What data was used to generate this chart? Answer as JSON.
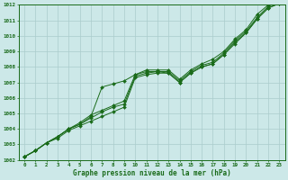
{
  "xlabel": "Graphe pression niveau de la mer (hPa)",
  "bg_color": "#cce8e8",
  "grid_color": "#aacccc",
  "line_color": "#1a6b1a",
  "xlim": [
    -0.5,
    23.5
  ],
  "ylim": [
    1002,
    1012
  ],
  "xticks": [
    0,
    1,
    2,
    3,
    4,
    5,
    6,
    7,
    8,
    9,
    10,
    11,
    12,
    13,
    14,
    15,
    16,
    17,
    18,
    19,
    20,
    21,
    22,
    23
  ],
  "yticks": [
    1002,
    1003,
    1004,
    1005,
    1006,
    1007,
    1008,
    1009,
    1010,
    1011,
    1012
  ],
  "series": [
    [
      1002.2,
      1002.6,
      1003.1,
      1003.4,
      1003.9,
      1004.2,
      1004.5,
      1004.8,
      1005.1,
      1005.4,
      1007.3,
      1007.5,
      1007.6,
      1007.6,
      1007.0,
      1007.6,
      1008.0,
      1008.2,
      1008.8,
      1009.6,
      1010.2,
      1011.1,
      1011.8,
      1012.1
    ],
    [
      1002.2,
      1002.6,
      1003.1,
      1003.5,
      1004.0,
      1004.3,
      1004.7,
      1005.1,
      1005.4,
      1005.6,
      1007.4,
      1007.6,
      1007.7,
      1007.7,
      1007.1,
      1007.7,
      1008.1,
      1008.3,
      1008.9,
      1009.7,
      1010.3,
      1011.2,
      1011.9,
      1012.2
    ],
    [
      1002.2,
      1002.6,
      1003.1,
      1003.5,
      1004.0,
      1004.3,
      1004.8,
      1006.7,
      1006.9,
      1007.1,
      1007.5,
      1007.7,
      1007.7,
      1007.6,
      1007.0,
      1007.6,
      1008.0,
      1008.2,
      1008.8,
      1009.5,
      1010.2,
      1011.1,
      1011.8,
      1012.1
    ],
    [
      1002.2,
      1002.6,
      1003.1,
      1003.5,
      1004.0,
      1004.4,
      1004.9,
      1005.2,
      1005.5,
      1005.8,
      1007.5,
      1007.8,
      1007.8,
      1007.8,
      1007.2,
      1007.8,
      1008.2,
      1008.5,
      1009.0,
      1009.8,
      1010.4,
      1011.4,
      1012.0,
      1012.3
    ]
  ]
}
